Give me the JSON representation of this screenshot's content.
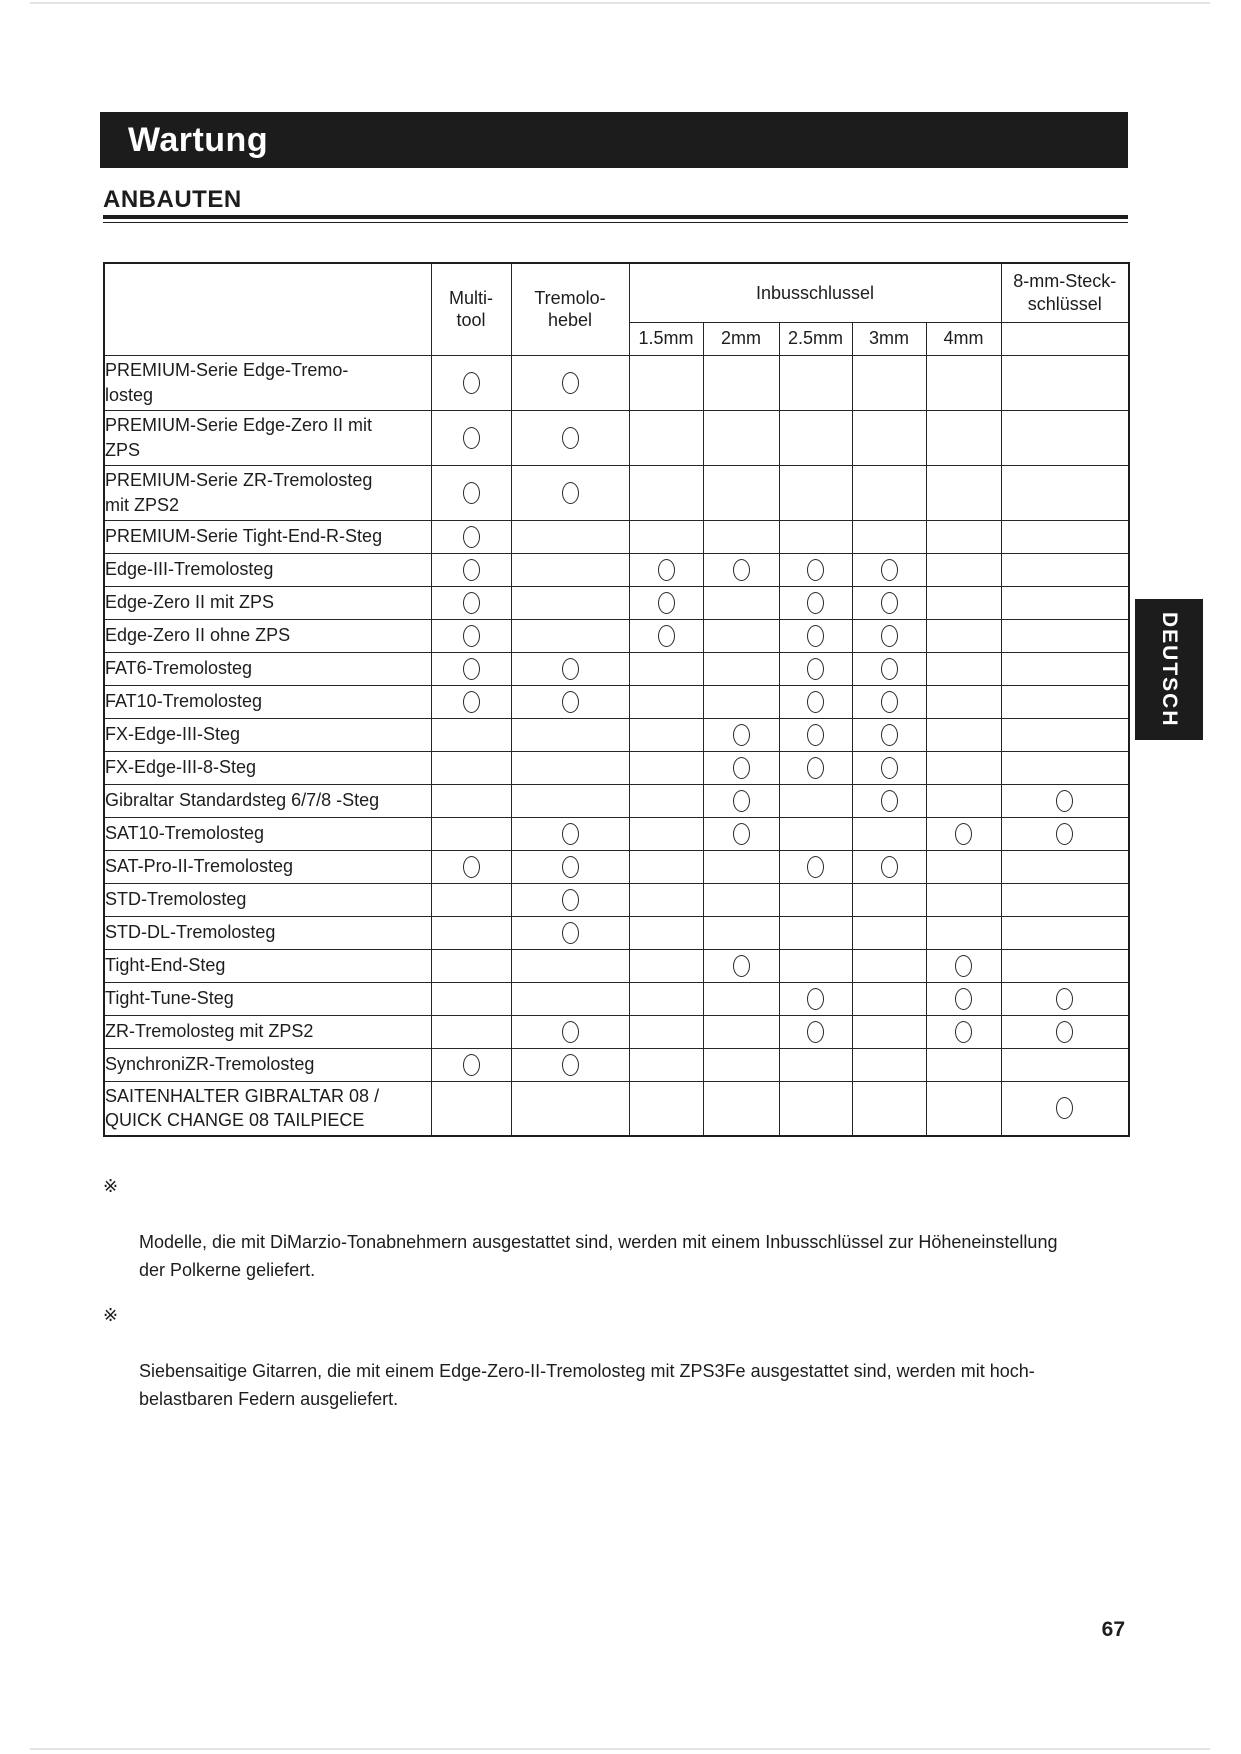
{
  "page": {
    "title_bar": "Wartung",
    "section_heading": "ANBAUTEN",
    "language_tab": "DEUTSCH",
    "page_number": "67"
  },
  "colors": {
    "ink": "#1d1d1d",
    "bar_background": "#1c1c1c",
    "bar_text": "#ffffff",
    "paper": "#ffffff"
  },
  "table": {
    "mark_symbol": "open-circle",
    "columns": [
      "multi",
      "arm",
      "h15",
      "h2",
      "h25",
      "h3",
      "h4",
      "socket"
    ],
    "header": {
      "multi_tool": "Multi-\ntool",
      "tremolo_arm": "Tremolo-\nhebel",
      "hex_group": "Inbusschlussel",
      "hex_sizes": [
        "1.5mm",
        "2mm",
        "2.5mm",
        "3mm",
        "4mm"
      ],
      "socket": "8-mm-Steck-\nschlüssel"
    },
    "rows": [
      {
        "label": "PREMIUM-Serie Edge-Tremo-\nlosteg",
        "marks": [
          "multi",
          "arm"
        ]
      },
      {
        "label": "PREMIUM-Serie Edge-Zero II mit\nZPS",
        "marks": [
          "multi",
          "arm"
        ]
      },
      {
        "label": "PREMIUM-Serie ZR-Tremolosteg\nmit ZPS2",
        "marks": [
          "multi",
          "arm"
        ]
      },
      {
        "label": "PREMIUM-Serie Tight-End-R-Steg",
        "marks": [
          "multi"
        ]
      },
      {
        "label": "Edge-III-Tremolosteg",
        "marks": [
          "multi",
          "h15",
          "h2",
          "h25",
          "h3"
        ]
      },
      {
        "label": "Edge-Zero II mit ZPS",
        "marks": [
          "multi",
          "h15",
          "h25",
          "h3"
        ]
      },
      {
        "label": "Edge-Zero II ohne ZPS",
        "marks": [
          "multi",
          "h15",
          "h25",
          "h3"
        ]
      },
      {
        "label": "FAT6-Tremolosteg",
        "marks": [
          "multi",
          "arm",
          "h25",
          "h3"
        ]
      },
      {
        "label": "FAT10-Tremolosteg",
        "marks": [
          "multi",
          "arm",
          "h25",
          "h3"
        ]
      },
      {
        "label": "FX-Edge-III-Steg",
        "marks": [
          "h2",
          "h25",
          "h3"
        ]
      },
      {
        "label": "FX-Edge-III-8-Steg",
        "marks": [
          "h2",
          "h25",
          "h3"
        ]
      },
      {
        "label": "Gibraltar Standardsteg 6/7/8 -Steg",
        "marks": [
          "h2",
          "h3",
          "socket"
        ]
      },
      {
        "label": "SAT10-Tremolosteg",
        "marks": [
          "arm",
          "h2",
          "h4",
          "socket"
        ]
      },
      {
        "label": "SAT-Pro-II-Tremolosteg",
        "marks": [
          "multi",
          "arm",
          "h25",
          "h3"
        ]
      },
      {
        "label": "STD-Tremolosteg",
        "marks": [
          "arm"
        ]
      },
      {
        "label": "STD-DL-Tremolosteg",
        "marks": [
          "arm"
        ]
      },
      {
        "label": "Tight-End-Steg",
        "marks": [
          "h2",
          "h4"
        ]
      },
      {
        "label": "Tight-Tune-Steg",
        "marks": [
          "h25",
          "h4",
          "socket"
        ]
      },
      {
        "label": "ZR-Tremolosteg mit ZPS2",
        "marks": [
          "arm",
          "h25",
          "h4",
          "socket"
        ]
      },
      {
        "label": "SynchroniZR-Tremolosteg",
        "marks": [
          "multi",
          "arm"
        ]
      },
      {
        "label": "SAITENHALTER GIBRALTAR 08 /\nQUICK CHANGE 08 TAILPIECE",
        "marks": [
          "socket"
        ]
      }
    ]
  },
  "footnotes": [
    {
      "symbol": "※",
      "text": "Modelle, die mit DiMarzio-Tonabnehmern ausgestattet sind, werden mit einem Inbusschlüssel zur Höheneinstellung\nder Polkerne geliefert."
    },
    {
      "symbol": "※",
      "text": "Siebensaitige Gitarren, die mit einem Edge-Zero-II-Tremolosteg mit ZPS3Fe ausgestattet sind, werden mit hoch-\nbelastbaren Federn ausgeliefert."
    }
  ]
}
